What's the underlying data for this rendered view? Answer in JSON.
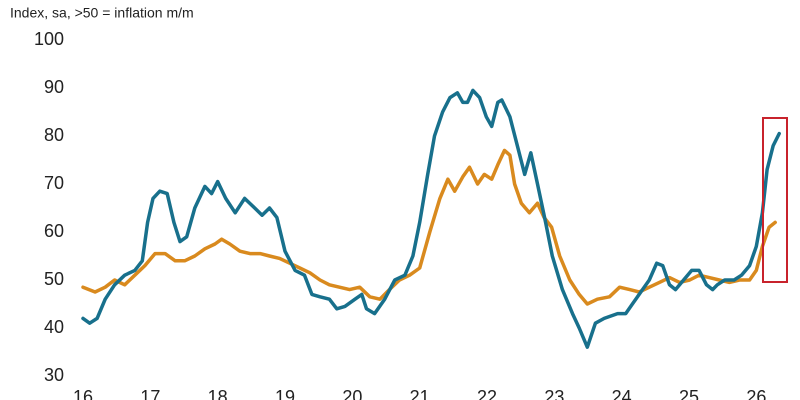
{
  "chart_data": {
    "type": "line",
    "subtitle": "Index, sa, >50 = inflation m/m",
    "xlim": [
      16,
      26.5
    ],
    "xticks": [
      16,
      17,
      18,
      19,
      20,
      21,
      22,
      23,
      24,
      25,
      26
    ],
    "ylim": [
      30,
      100
    ],
    "yticks": [
      30,
      40,
      50,
      60,
      70,
      80,
      90,
      100
    ],
    "grid": false,
    "series": [
      {
        "color": "#18708c",
        "x": [
          16.0,
          16.1,
          16.21,
          16.33,
          16.47,
          16.62,
          16.77,
          16.88,
          16.96,
          17.04,
          17.14,
          17.25,
          17.35,
          17.44,
          17.54,
          17.66,
          17.81,
          17.91,
          18.0,
          18.12,
          18.26,
          18.4,
          18.55,
          18.66,
          18.77,
          18.88,
          19.0,
          19.15,
          19.29,
          19.4,
          19.52,
          19.66,
          19.77,
          19.89,
          20.04,
          20.14,
          20.21,
          20.33,
          20.48,
          20.63,
          20.78,
          20.9,
          21.0,
          21.12,
          21.22,
          21.34,
          21.45,
          21.56,
          21.64,
          21.71,
          21.79,
          21.89,
          21.99,
          22.07,
          22.16,
          22.22,
          22.34,
          22.45,
          22.56,
          22.65,
          22.75,
          22.87,
          22.97,
          23.12,
          23.27,
          23.37,
          23.49,
          23.61,
          23.74,
          23.94,
          24.06,
          24.16,
          24.31,
          24.41,
          24.52,
          24.61,
          24.71,
          24.8,
          24.92,
          25.04,
          25.15,
          25.26,
          25.35,
          25.42,
          25.53,
          25.67,
          25.78,
          25.9,
          26.0,
          26.09,
          26.16,
          26.25,
          26.34
        ],
        "values": [
          42,
          41,
          42,
          46,
          49,
          51,
          52,
          54,
          62,
          67,
          68.5,
          68,
          62,
          58,
          59,
          65,
          69.5,
          68,
          70.5,
          67,
          64,
          67,
          65,
          63.5,
          65,
          63,
          56,
          52,
          51,
          47,
          46.5,
          46,
          44,
          44.5,
          46,
          47,
          44,
          43,
          46,
          50,
          51,
          55,
          62,
          72,
          80,
          85,
          88,
          89,
          87,
          87,
          89.5,
          88,
          84,
          82,
          87,
          87.5,
          84,
          78,
          72,
          76.5,
          70,
          62,
          55,
          48,
          43,
          40,
          36,
          41,
          42,
          43,
          43,
          45,
          48,
          50,
          53.5,
          53,
          49,
          48,
          50,
          52,
          52,
          49,
          48,
          49,
          50,
          50,
          51,
          53,
          57,
          64,
          73,
          78,
          80.5
        ]
      },
      {
        "color": "#d98a1e",
        "x": [
          16.0,
          16.18,
          16.33,
          16.47,
          16.62,
          16.77,
          16.92,
          17.07,
          17.22,
          17.37,
          17.51,
          17.66,
          17.81,
          17.96,
          18.06,
          18.18,
          18.33,
          18.48,
          18.63,
          18.77,
          18.92,
          19.07,
          19.22,
          19.37,
          19.52,
          19.66,
          19.81,
          19.96,
          20.11,
          20.26,
          20.41,
          20.55,
          20.7,
          20.85,
          21.0,
          21.15,
          21.3,
          21.42,
          21.52,
          21.64,
          21.74,
          21.86,
          21.96,
          22.07,
          22.16,
          22.26,
          22.34,
          22.41,
          22.51,
          22.63,
          22.75,
          22.85,
          22.96,
          23.08,
          23.23,
          23.37,
          23.49,
          23.64,
          23.82,
          23.97,
          24.12,
          24.26,
          24.41,
          24.56,
          24.71,
          24.86,
          25.01,
          25.15,
          25.3,
          25.45,
          25.6,
          25.75,
          25.9,
          26.0,
          26.09,
          26.19,
          26.28
        ],
        "values": [
          48.5,
          47.5,
          48.5,
          50,
          49,
          51,
          53,
          55.5,
          55.5,
          54,
          54,
          55,
          56.5,
          57.5,
          58.5,
          57.5,
          56,
          55.5,
          55.5,
          55,
          54.5,
          53.5,
          52.5,
          51.5,
          50,
          49,
          48.5,
          48,
          48.5,
          46.5,
          46,
          48,
          50,
          51,
          52.5,
          60,
          67,
          71,
          68.5,
          71.5,
          73.5,
          70,
          72,
          71,
          74,
          77,
          76,
          70,
          66,
          64,
          66,
          63,
          61,
          55,
          50,
          47,
          45,
          46,
          46.5,
          48.5,
          48,
          47.5,
          48.5,
          49.5,
          50.5,
          49.5,
          50,
          51,
          50.5,
          50,
          49.5,
          50,
          50,
          52,
          57,
          61,
          62
        ]
      }
    ]
  }
}
